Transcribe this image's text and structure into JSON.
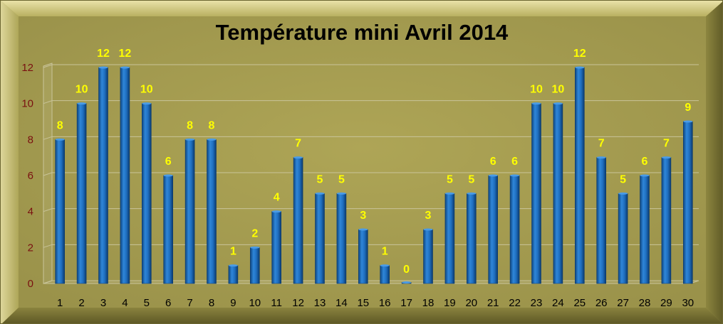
{
  "chart_data": {
    "type": "bar",
    "title": "Température mini Avril 2014",
    "xlabel": "",
    "ylabel": "",
    "categories": [
      "1",
      "2",
      "3",
      "4",
      "5",
      "6",
      "7",
      "8",
      "9",
      "10",
      "11",
      "12",
      "13",
      "14",
      "15",
      "16",
      "17",
      "18",
      "19",
      "20",
      "21",
      "22",
      "23",
      "24",
      "25",
      "26",
      "27",
      "28",
      "29",
      "30"
    ],
    "values": [
      8,
      10,
      12,
      12,
      10,
      6,
      8,
      8,
      1,
      2,
      4,
      7,
      5,
      5,
      3,
      1,
      0,
      3,
      5,
      5,
      6,
      6,
      10,
      10,
      12,
      7,
      5,
      6,
      7,
      9
    ],
    "ylim": [
      0,
      12
    ],
    "yticks": [
      0,
      2,
      4,
      6,
      8,
      10,
      12
    ],
    "grid": true,
    "legend": "none",
    "data_labels": true
  },
  "colors": {
    "background": "#a39b4e",
    "bar": "#1f6fc0",
    "bar_dark": "#0b3a6e",
    "data_label": "#ffff00",
    "y_tick_label": "#7a1010",
    "grid": "#c9c49a"
  }
}
